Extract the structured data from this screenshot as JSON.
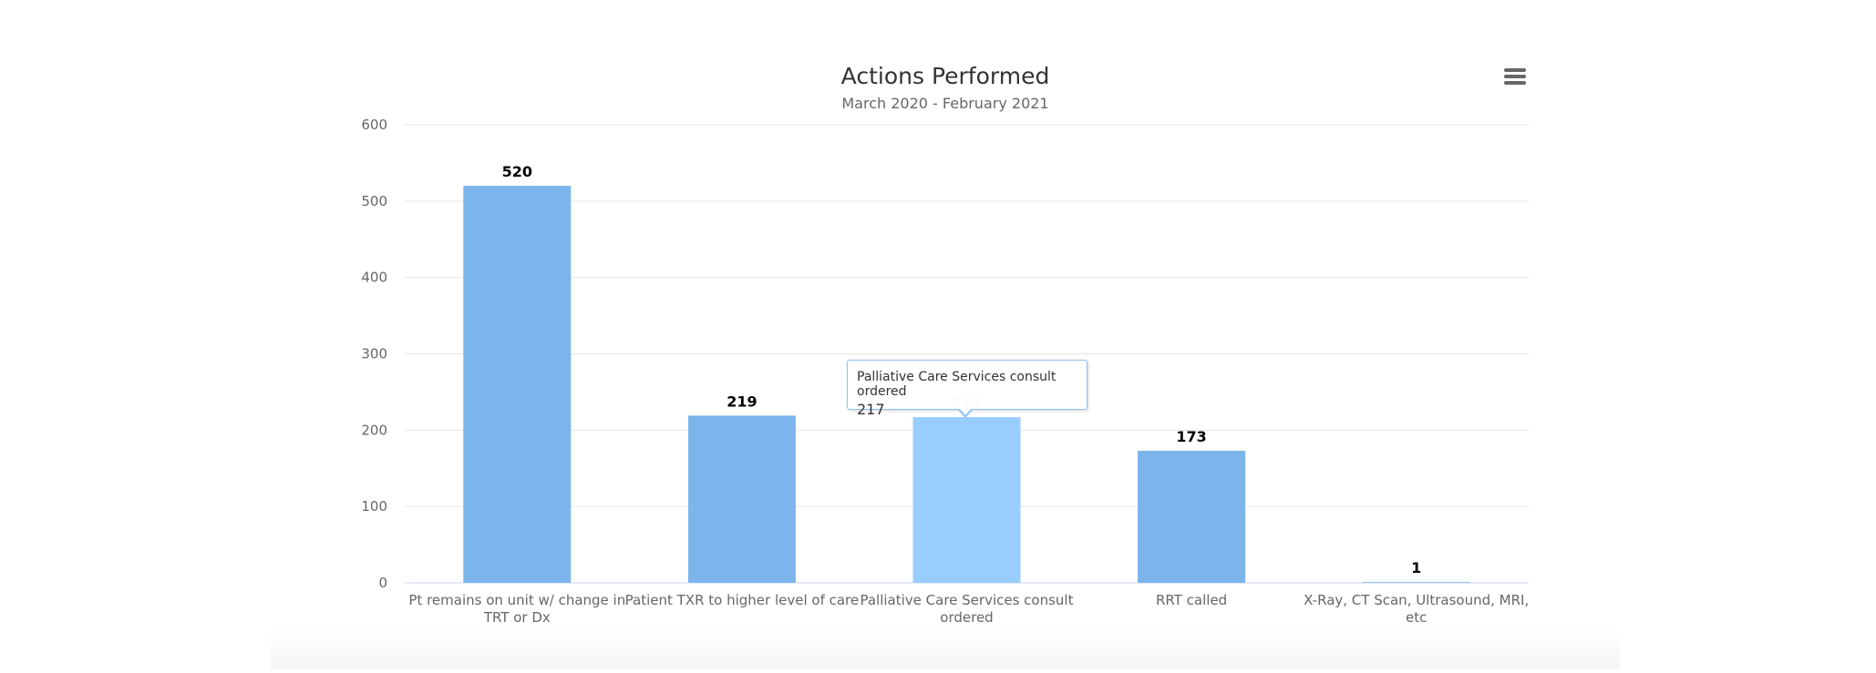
{
  "chart_data": {
    "type": "bar",
    "title": "Actions Performed",
    "subtitle": "March 2020 - February 2021",
    "categories": [
      [
        "Pt remains on unit w/ change in",
        "TRT or Dx"
      ],
      [
        "Patient TXR to higher level of care"
      ],
      [
        "Palliative Care Services consult",
        "ordered"
      ],
      [
        "RRT called"
      ],
      [
        "X-Ray, CT Scan, Ultrasound, MRI,",
        "etc"
      ]
    ],
    "values": [
      520,
      219,
      217,
      173,
      1
    ],
    "ylim": [
      0,
      600
    ],
    "yticks": [
      0,
      100,
      200,
      300,
      400,
      500,
      600
    ],
    "xlabel": "",
    "ylabel": "",
    "grid": true,
    "highlighted_index": 2,
    "colors": {
      "bar": "#7cb5ec",
      "bar_hover": "#99ccff",
      "grid": "#e6e6e6",
      "text": "#333333",
      "axis_text": "#666666"
    }
  },
  "tooltip": {
    "name": "Palliative Care Services consult ordered",
    "value": "217"
  },
  "menu": {
    "icon": "hamburger-menu-icon"
  }
}
